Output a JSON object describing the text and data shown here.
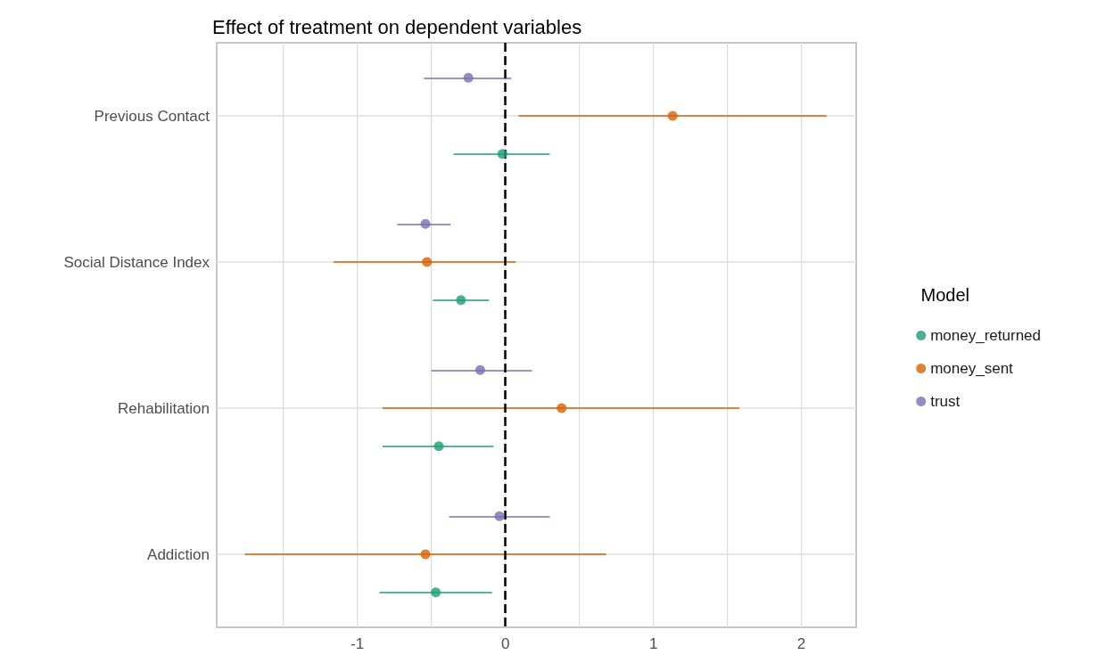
{
  "chart_data": {
    "type": "scatter",
    "title": "Effect of treatment on dependent variables",
    "orientation": "horizontal",
    "categories": [
      "Previous Contact",
      "Social Distance Index",
      "Rehabilitation",
      "Addiction"
    ],
    "series": [
      {
        "name": "money_returned",
        "color": "#1b9e77",
        "values": [
          -0.02,
          -0.3,
          -0.45,
          -0.47
        ],
        "errors": [
          [
            -0.35,
            0.3
          ],
          [
            -0.49,
            -0.11
          ],
          [
            -0.83,
            -0.08
          ],
          [
            -0.85,
            -0.09
          ]
        ]
      },
      {
        "name": "money_sent",
        "color": "#d95f02",
        "values": [
          1.13,
          -0.53,
          0.38,
          -0.54
        ],
        "errors": [
          [
            0.09,
            2.17
          ],
          [
            -1.16,
            0.07
          ],
          [
            -0.83,
            1.58
          ],
          [
            -1.76,
            0.68
          ]
        ]
      },
      {
        "name": "trust",
        "color": "#7570b3",
        "values": [
          -0.25,
          -0.54,
          -0.17,
          -0.04
        ],
        "errors": [
          [
            -0.55,
            0.04
          ],
          [
            -0.73,
            -0.37
          ],
          [
            -0.5,
            0.18
          ],
          [
            -0.38,
            0.3
          ]
        ]
      }
    ],
    "xlim": [
      -1.95,
      2.37
    ],
    "xticks": [
      {
        "value": -1.5,
        "label": null
      },
      -1,
      {
        "value": -0.5,
        "label": null
      },
      0,
      {
        "value": 0.5,
        "label": null
      },
      1,
      {
        "value": 1.5,
        "label": null
      },
      2
    ],
    "ref_lines": [
      {
        "axis": "x",
        "value": 0,
        "color": "#000000",
        "line_style": "dashed"
      }
    ],
    "legend_title": "Model",
    "legend": "right",
    "grid": true,
    "marker": "circle"
  }
}
